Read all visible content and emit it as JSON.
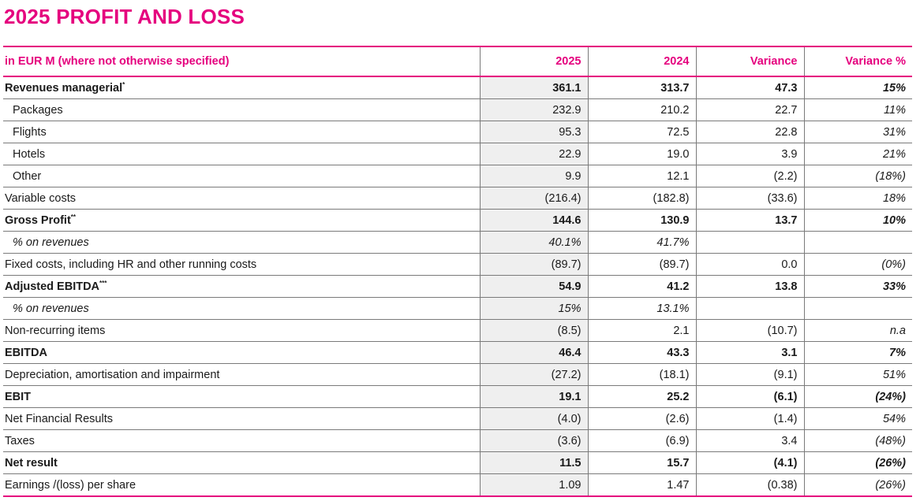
{
  "title": "2025 PROFIT AND LOSS",
  "table": {
    "headers": {
      "label": "in EUR M (where not otherwise specified)",
      "y2025": "2025",
      "y2024": "2024",
      "variance": "Variance",
      "variance_pct": "Variance %"
    },
    "rows": [
      {
        "label": "Revenues managerial",
        "footnote": "*",
        "y2025": "361.1",
        "y2024": "313.7",
        "variance": "47.3",
        "variance_pct": "15%"
      },
      {
        "label": "Packages",
        "y2025": "232.9",
        "y2024": "210.2",
        "variance": "22.7",
        "variance_pct": "11%"
      },
      {
        "label": "Flights",
        "y2025": "95.3",
        "y2024": "72.5",
        "variance": "22.8",
        "variance_pct": "31%"
      },
      {
        "label": "Hotels",
        "y2025": "22.9",
        "y2024": "19.0",
        "variance": "3.9",
        "variance_pct": "21%"
      },
      {
        "label": "Other",
        "y2025": "9.9",
        "y2024": "12.1",
        "variance": "(2.2)",
        "variance_pct": "(18%)"
      },
      {
        "label": "Variable costs",
        "y2025": "(216.4)",
        "y2024": "(182.8)",
        "variance": "(33.6)",
        "variance_pct": "18%"
      },
      {
        "label": "Gross Profit",
        "footnote": "**",
        "y2025": "144.6",
        "y2024": "130.9",
        "variance": "13.7",
        "variance_pct": "10%"
      },
      {
        "label": "% on revenues",
        "y2025": "40.1%",
        "y2024": "41.7%",
        "variance": "",
        "variance_pct": ""
      },
      {
        "label": "Fixed costs, including HR and other running costs",
        "y2025": "(89.7)",
        "y2024": "(89.7)",
        "variance": "0.0",
        "variance_pct": "(0%)"
      },
      {
        "label": "Adjusted EBITDA",
        "footnote": "***",
        "y2025": "54.9",
        "y2024": "41.2",
        "variance": "13.8",
        "variance_pct": "33%"
      },
      {
        "label": "% on revenues",
        "y2025": "15%",
        "y2024": "13.1%",
        "variance": "",
        "variance_pct": ""
      },
      {
        "label": "Non-recurring items",
        "y2025": "(8.5)",
        "y2024": "2.1",
        "variance": "(10.7)",
        "variance_pct": "n.a"
      },
      {
        "label": "EBITDA",
        "y2025": "46.4",
        "y2024": "43.3",
        "variance": "3.1",
        "variance_pct": "7%"
      },
      {
        "label": "Depreciation, amortisation and impairment",
        "y2025": "(27.2)",
        "y2024": "(18.1)",
        "variance": "(9.1)",
        "variance_pct": "51%"
      },
      {
        "label": "EBIT",
        "y2025": "19.1",
        "y2024": "25.2",
        "variance": "(6.1)",
        "variance_pct": "(24%)"
      },
      {
        "label": "Net Financial Results",
        "y2025": "(4.0)",
        "y2024": "(2.6)",
        "variance": "(1.4)",
        "variance_pct": "54%"
      },
      {
        "label": "Taxes",
        "y2025": "(3.6)",
        "y2024": "(6.9)",
        "variance": "3.4",
        "variance_pct": "(48%)"
      },
      {
        "label": "Net result",
        "y2025": "11.5",
        "y2024": "15.7",
        "variance": "(4.1)",
        "variance_pct": "(26%)"
      },
      {
        "label": "Earnings /(loss) per share",
        "y2025": "1.09",
        "y2024": "1.47",
        "variance": "(0.38)",
        "variance_pct": "(26%)"
      }
    ]
  }
}
